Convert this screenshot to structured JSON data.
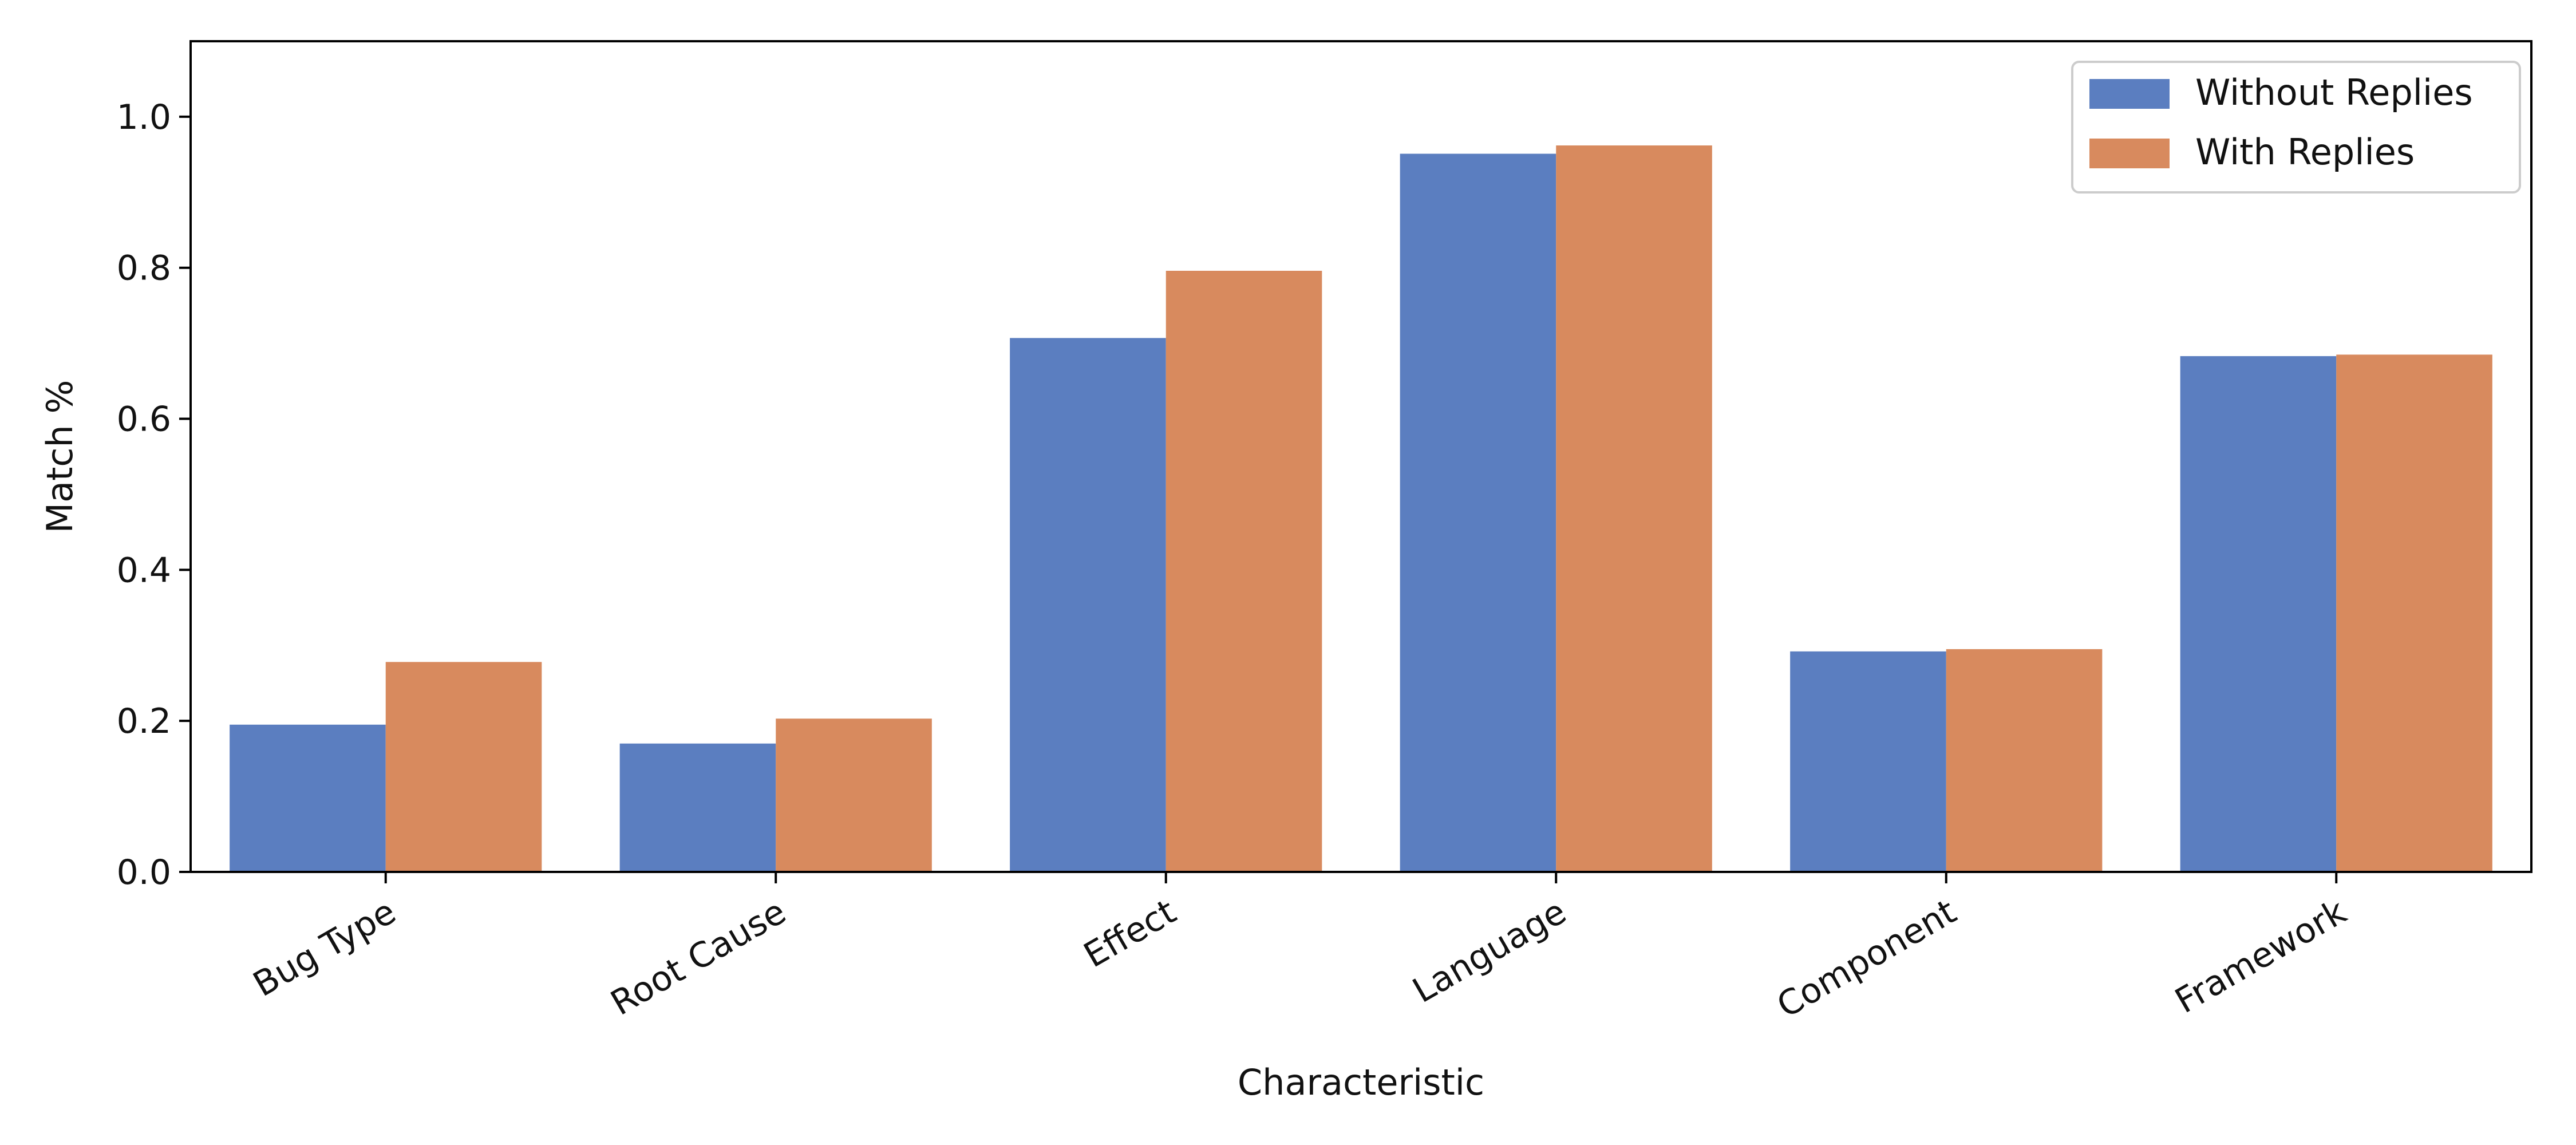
{
  "chart_data": {
    "type": "bar",
    "title": "",
    "xlabel": "Characteristic",
    "ylabel": "Match %",
    "categories": [
      "Bug Type",
      "Root Cause",
      "Effect",
      "Language",
      "Component",
      "Framework"
    ],
    "series": [
      {
        "name": "Without Replies",
        "color": "#5b7ec0",
        "values": [
          0.195,
          0.17,
          0.707,
          0.951,
          0.292,
          0.683
        ]
      },
      {
        "name": "With Replies",
        "color": "#d88a5e",
        "values": [
          0.278,
          0.203,
          0.796,
          0.962,
          0.295,
          0.685
        ]
      }
    ],
    "ylim": [
      0,
      1.1
    ],
    "yticks": [
      0.0,
      0.2,
      0.4,
      0.6,
      0.8,
      1.0
    ],
    "ytick_labels": [
      "0.0",
      "0.2",
      "0.4",
      "0.6",
      "0.8",
      "1.0"
    ],
    "grid": false,
    "legend_position": "top-right",
    "xtick_rotation_deg": -30
  }
}
